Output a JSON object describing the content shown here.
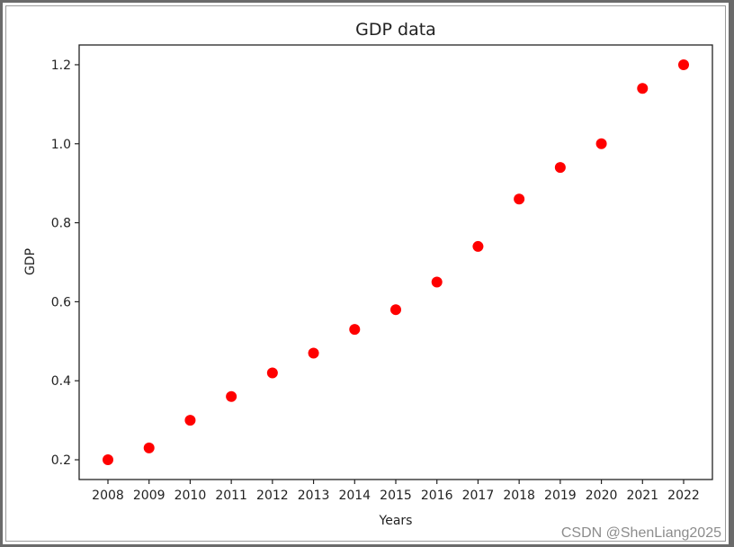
{
  "chart_data": {
    "type": "scatter",
    "title": "GDP data",
    "xlabel": "Years",
    "ylabel": "GDP",
    "x": [
      2008,
      2009,
      2010,
      2011,
      2012,
      2013,
      2014,
      2015,
      2016,
      2017,
      2018,
      2019,
      2020,
      2021,
      2022
    ],
    "y": [
      0.2,
      0.23,
      0.3,
      0.36,
      0.42,
      0.47,
      0.53,
      0.58,
      0.65,
      0.74,
      0.86,
      0.94,
      1.0,
      1.14,
      1.2
    ],
    "xticks": [
      "2008",
      "2009",
      "2010",
      "2011",
      "2012",
      "2013",
      "2014",
      "2015",
      "2016",
      "2017",
      "2018",
      "2019",
      "2020",
      "2021",
      "2022"
    ],
    "yticks": [
      "0.2",
      "0.4",
      "0.6",
      "0.8",
      "1.0",
      "1.2"
    ],
    "ytick_values": [
      0.2,
      0.4,
      0.6,
      0.8,
      1.0,
      1.2
    ],
    "ylim": [
      0.15,
      1.25
    ],
    "xlim": [
      2007.3,
      2022.7
    ],
    "marker_color": "#ff0000",
    "grid": false,
    "legend": null
  },
  "watermark": "CSDN @ShenLiang2025"
}
